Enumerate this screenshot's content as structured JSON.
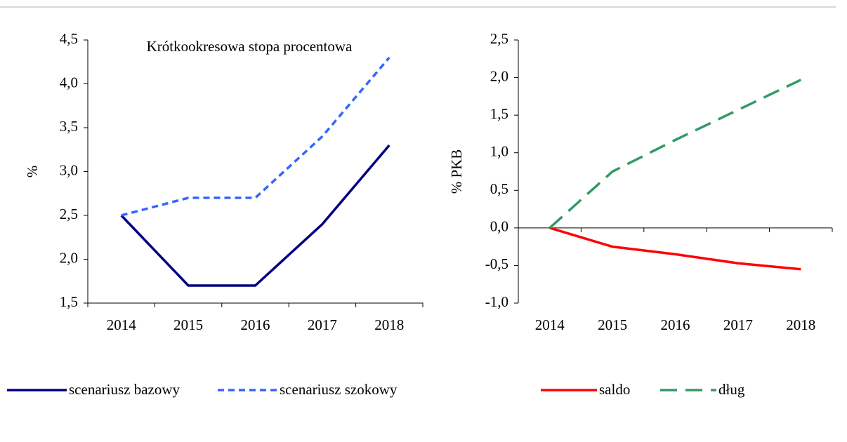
{
  "chart_data": [
    {
      "type": "line",
      "title": "Krótkookresowa stopa procentowa",
      "ylabel": "%",
      "categories": [
        "2014",
        "2015",
        "2016",
        "2017",
        "2018"
      ],
      "series": [
        {
          "name": "scenariusz bazowy",
          "color": "#000080",
          "linestyle": "solid",
          "values": [
            2.5,
            1.7,
            1.7,
            2.4,
            3.3
          ]
        },
        {
          "name": "scenariusz szokowy",
          "color": "#3366ff",
          "linestyle": "short-dash",
          "values": [
            2.5,
            2.7,
            2.7,
            3.4,
            4.3
          ]
        }
      ],
      "ylim": [
        1.5,
        4.5
      ],
      "yticks": [
        {
          "value": 1.5,
          "label": "1,5"
        },
        {
          "value": 2.0,
          "label": "2,0"
        },
        {
          "value": 2.5,
          "label": "2,5"
        },
        {
          "value": 3.0,
          "label": "3,0"
        },
        {
          "value": 3.5,
          "label": "3,5"
        },
        {
          "value": 4.0,
          "label": "4,0"
        },
        {
          "value": 4.5,
          "label": "4,5"
        }
      ]
    },
    {
      "type": "line",
      "ylabel": "% PKB",
      "categories": [
        "2014",
        "2015",
        "2016",
        "2017",
        "2018"
      ],
      "series": [
        {
          "name": "saldo",
          "color": "#ff0000",
          "linestyle": "solid",
          "values": [
            0,
            -0.25,
            -0.35,
            -0.47,
            -0.55
          ]
        },
        {
          "name": "dług",
          "color": "#339966",
          "linestyle": "long-dash",
          "values": [
            0,
            0.75,
            1.17,
            1.57,
            1.97
          ]
        }
      ],
      "ylim": [
        -1.0,
        2.5
      ],
      "yticks": [
        {
          "value": -1.0,
          "label": "-1,0"
        },
        {
          "value": -0.5,
          "label": "-0,5"
        },
        {
          "value": 0,
          "label": "0,0"
        },
        {
          "value": 0.5,
          "label": "0,5"
        },
        {
          "value": 1.0,
          "label": "1,0"
        },
        {
          "value": 1.5,
          "label": "1,5"
        },
        {
          "value": 2.0,
          "label": "2,0"
        },
        {
          "value": 2.5,
          "label": "2,5"
        }
      ]
    }
  ]
}
